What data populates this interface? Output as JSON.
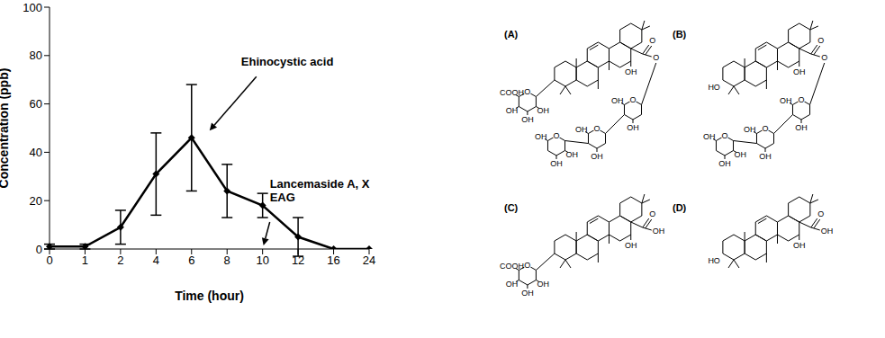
{
  "chart_data": {
    "type": "line",
    "x_label": "Time (hour)",
    "y_label": "Concentration (ppb)",
    "categories": [
      "0",
      "1",
      "2",
      "4",
      "6",
      "8",
      "10",
      "12",
      "16",
      "24"
    ],
    "values": [
      1,
      1,
      9,
      31,
      46,
      24,
      18,
      5,
      0,
      0
    ],
    "errors": [
      1,
      1,
      7,
      17,
      22,
      11,
      5,
      8,
      0,
      0
    ],
    "ylim": [
      0,
      100
    ],
    "yticks": [
      0,
      20,
      40,
      60,
      80,
      100
    ],
    "color": "#000000",
    "marker": "diamond",
    "annotations": [
      {
        "text": [
          "Ehinocystic acid"
        ],
        "x": "6",
        "y": 46
      },
      {
        "text": [
          "Lancemaside A, X",
          "EAG"
        ],
        "x": "10",
        "y": 0
      }
    ]
  },
  "structures": [
    {
      "label": "(A)",
      "c3": {
        "ring": "O",
        "groups": [
          "COOH",
          "OH",
          "OH",
          "OH"
        ]
      },
      "c16": "OH",
      "c28": {
        "carbonyl": "O",
        "link": "O",
        "sugars": [
          {
            "ring": "O",
            "groups": [
              "OH",
              "OH"
            ]
          },
          {
            "ring": "O",
            "groups": [
              "OH",
              "OH"
            ]
          },
          {
            "ring": "O",
            "groups": [
              "OH",
              "OH",
              "OH"
            ]
          }
        ]
      }
    },
    {
      "label": "(B)",
      "c3": "HO",
      "c16": "OH",
      "c28": {
        "carbonyl": "O",
        "link": "O",
        "sugars": [
          {
            "ring": "O",
            "groups": [
              "OH",
              "OH"
            ]
          },
          {
            "ring": "O",
            "groups": [
              "OH",
              "OH"
            ]
          },
          {
            "ring": "O",
            "groups": [
              "OH",
              "OH",
              "OH"
            ]
          }
        ]
      }
    },
    {
      "label": "(C)",
      "c3": {
        "ring": "O",
        "groups": [
          "COOH",
          "OH",
          "OH",
          "OH"
        ]
      },
      "c16": "OH",
      "c28": {
        "carbonyl": "O",
        "oh": "OH"
      }
    },
    {
      "label": "(D)",
      "c3": "HO",
      "c16": "OH",
      "c28": {
        "carbonyl": "O",
        "oh": "OH"
      }
    }
  ]
}
